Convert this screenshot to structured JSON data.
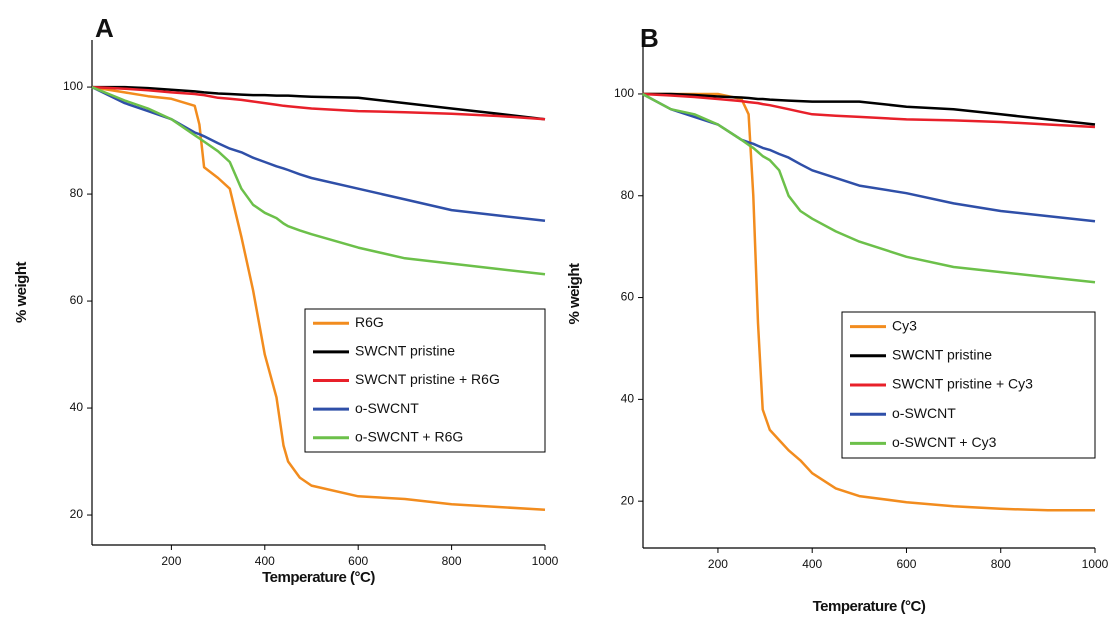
{
  "chart_data": [
    {
      "type": "line",
      "panel_label": "A",
      "xlabel": "Temperature (°C)",
      "ylabel": "% weight",
      "xlim": [
        30,
        1000
      ],
      "ylim": [
        14.4,
        108.8
      ],
      "xticks": [
        200,
        400,
        600,
        800,
        1000
      ],
      "yticks": [
        20,
        40,
        60,
        80,
        100
      ],
      "x": [
        30,
        100,
        150,
        200,
        250,
        260,
        270,
        300,
        325,
        350,
        375,
        400,
        425,
        440,
        450,
        475,
        500,
        600,
        700,
        800,
        900,
        1000
      ],
      "series": [
        {
          "name": "R6G",
          "color": "#f28c1e",
          "values": [
            100,
            99,
            98.3,
            97.8,
            96.5,
            93,
            85,
            83,
            81,
            72,
            62,
            50,
            42,
            33,
            30,
            27,
            25.5,
            23.5,
            23,
            22,
            21.5,
            21
          ]
        },
        {
          "name": "SWCNT pristine",
          "color": "#000000",
          "values": [
            100,
            100,
            99.8,
            99.5,
            99.2,
            99.1,
            99,
            98.8,
            98.7,
            98.6,
            98.5,
            98.5,
            98.4,
            98.4,
            98.4,
            98.3,
            98.2,
            98,
            97,
            96,
            95,
            94
          ]
        },
        {
          "name": "SWCNT pristine + R6G",
          "color": "#e8202a",
          "values": [
            100,
            99.7,
            99.4,
            99,
            98.7,
            98.6,
            98.5,
            98,
            97.8,
            97.6,
            97.3,
            97,
            96.7,
            96.5,
            96.4,
            96.2,
            96,
            95.5,
            95.3,
            95,
            94.6,
            94
          ]
        },
        {
          "name": "o-SWCNT",
          "color": "#2f4fa8",
          "values": [
            100,
            97,
            95.5,
            94,
            91.5,
            91.2,
            90.8,
            89.5,
            88.5,
            87.8,
            86.8,
            86,
            85.2,
            84.8,
            84.5,
            83.7,
            83,
            81,
            79,
            77,
            76,
            75
          ]
        },
        {
          "name": "o-SWCNT + R6G",
          "color": "#6cc04a",
          "values": [
            100,
            97.5,
            96,
            94,
            91,
            90.4,
            89.8,
            88,
            86,
            81,
            78,
            76.5,
            75.5,
            74.5,
            74,
            73.2,
            72.5,
            70,
            68,
            67,
            66,
            65
          ]
        }
      ]
    },
    {
      "type": "line",
      "panel_label": "B",
      "xlabel": "Temperature (°C)",
      "ylabel": "% weight",
      "xlim": [
        41,
        1000
      ],
      "ylim": [
        10.8,
        110.6
      ],
      "xticks": [
        200,
        400,
        600,
        800,
        1000
      ],
      "yticks": [
        20,
        40,
        60,
        80,
        100
      ],
      "x": [
        40,
        100,
        150,
        200,
        250,
        265,
        275,
        285,
        295,
        310,
        330,
        350,
        375,
        400,
        450,
        500,
        600,
        700,
        800,
        900,
        1000
      ],
      "series": [
        {
          "name": "Cy3",
          "color": "#f28c1e",
          "values": [
            100,
            100,
            100,
            100,
            99,
            96,
            80,
            55,
            38,
            34,
            32,
            30,
            28,
            25.5,
            22.5,
            21,
            19.8,
            19,
            18.5,
            18.2,
            18.2
          ]
        },
        {
          "name": "SWCNT pristine",
          "color": "#000000",
          "values": [
            100,
            100,
            99.8,
            99.5,
            99.3,
            99.2,
            99.1,
            99,
            99,
            98.9,
            98.8,
            98.7,
            98.6,
            98.5,
            98.5,
            98.5,
            97.5,
            97,
            96,
            95,
            94
          ]
        },
        {
          "name": "SWCNT pristine + Cy3",
          "color": "#e8202a",
          "values": [
            100,
            99.7,
            99.4,
            99,
            98.6,
            98.4,
            98.3,
            98.2,
            98,
            97.8,
            97.4,
            97,
            96.5,
            96,
            95.7,
            95.5,
            95,
            94.8,
            94.5,
            94,
            93.5
          ]
        },
        {
          "name": "o-SWCNT",
          "color": "#2f4fa8",
          "values": [
            100,
            97,
            95.5,
            94,
            91,
            90.5,
            90.2,
            89.8,
            89.4,
            89,
            88.2,
            87.5,
            86.2,
            85,
            83.5,
            82,
            80.5,
            78.5,
            77,
            76,
            75
          ]
        },
        {
          "name": "o-SWCNT + Cy3",
          "color": "#6cc04a",
          "values": [
            100,
            97,
            96,
            94,
            91,
            90,
            89.4,
            88.6,
            87.8,
            87,
            85,
            80,
            77,
            75.5,
            73,
            71,
            68,
            66,
            65,
            64,
            63
          ]
        }
      ]
    }
  ]
}
